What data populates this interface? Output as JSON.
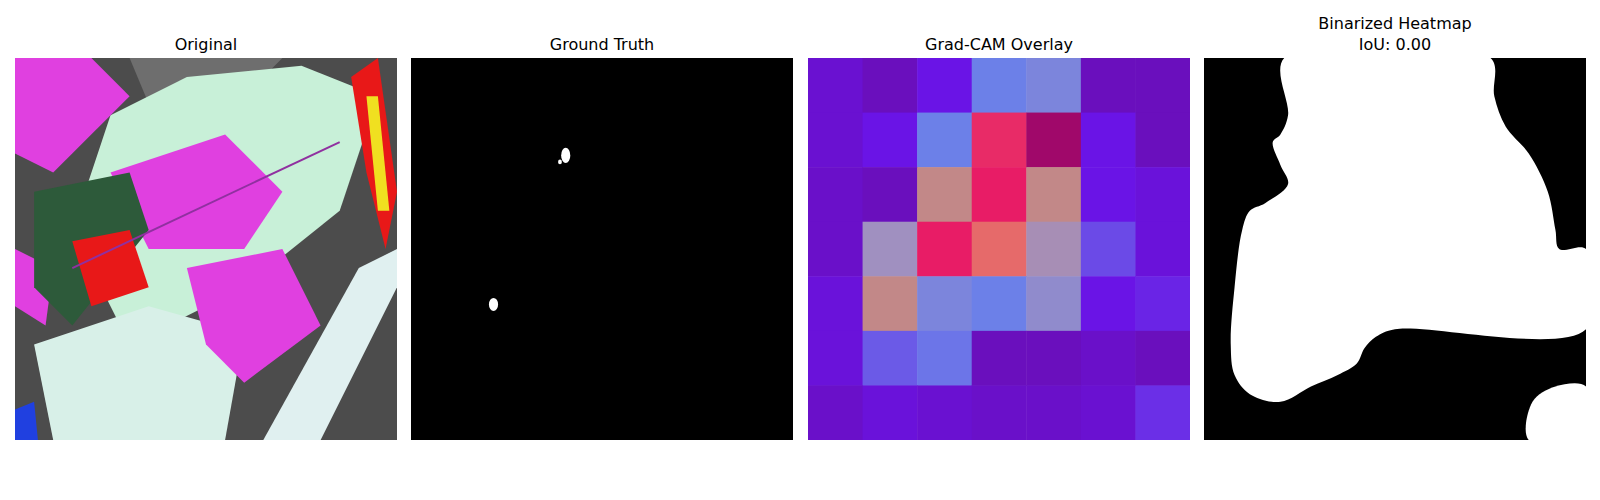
{
  "chart_data": [
    {
      "type": "image",
      "title": "Original",
      "tick_labels": false
    },
    {
      "type": "mask",
      "title": "Ground Truth",
      "tick_labels": false,
      "xlim": [
        0,
        1
      ],
      "ylim": [
        0,
        1
      ],
      "blobs": [
        {
          "x": 0.405,
          "y": 0.255,
          "rx": 0.012,
          "ry": 0.02
        },
        {
          "x": 0.39,
          "y": 0.272,
          "rx": 0.005,
          "ry": 0.006
        },
        {
          "x": 0.216,
          "y": 0.645,
          "rx": 0.012,
          "ry": 0.017
        }
      ]
    },
    {
      "type": "heatmap",
      "title": "Grad-CAM Overlay",
      "tick_labels": false,
      "zlim": [
        0,
        1
      ],
      "cells": [
        [
          0.1,
          0.05,
          0.15,
          0.35,
          0.38,
          0.05,
          0.05
        ],
        [
          0.1,
          0.15,
          0.35,
          0.85,
          1.0,
          0.15,
          0.05
        ],
        [
          0.08,
          0.05,
          0.6,
          0.88,
          0.6,
          0.15,
          0.12
        ],
        [
          0.08,
          0.45,
          0.88,
          0.72,
          0.48,
          0.25,
          0.12
        ],
        [
          0.12,
          0.6,
          0.38,
          0.35,
          0.42,
          0.15,
          0.18
        ],
        [
          0.12,
          0.28,
          0.33,
          0.05,
          0.05,
          0.08,
          0.05
        ],
        [
          0.08,
          0.12,
          0.1,
          0.08,
          0.08,
          0.1,
          0.2
        ]
      ]
    },
    {
      "type": "mask",
      "title": "Binarized Heatmap",
      "subtitle": "IoU: 0.00",
      "tick_labels": false,
      "xlim": [
        0,
        1
      ],
      "ylim": [
        0,
        1
      ],
      "regions": [
        {
          "x": [
            0.21,
            0.75,
            0.76,
            0.79,
            0.85,
            0.9,
            0.92,
            0.93,
            1.0,
            1.0,
            0.5,
            0.45,
            0.42,
            0.4,
            0.35,
            0.28,
            0.2,
            0.12,
            0.08,
            0.07,
            0.08,
            0.1,
            0.12,
            0.16,
            0.22,
            0.2,
            0.18,
            0.2,
            0.22
          ],
          "y": [
            0.0,
            0.0,
            0.1,
            0.18,
            0.25,
            0.35,
            0.45,
            0.5,
            0.5,
            0.71,
            0.71,
            0.73,
            0.76,
            0.8,
            0.83,
            0.86,
            0.9,
            0.88,
            0.83,
            0.75,
            0.6,
            0.45,
            0.4,
            0.38,
            0.33,
            0.28,
            0.22,
            0.2,
            0.15
          ]
        },
        {
          "x": [
            0.85,
            0.86,
            0.92,
            1.0,
            1.0
          ],
          "y": [
            1.0,
            0.9,
            0.86,
            0.86,
            1.0
          ]
        }
      ]
    }
  ]
}
